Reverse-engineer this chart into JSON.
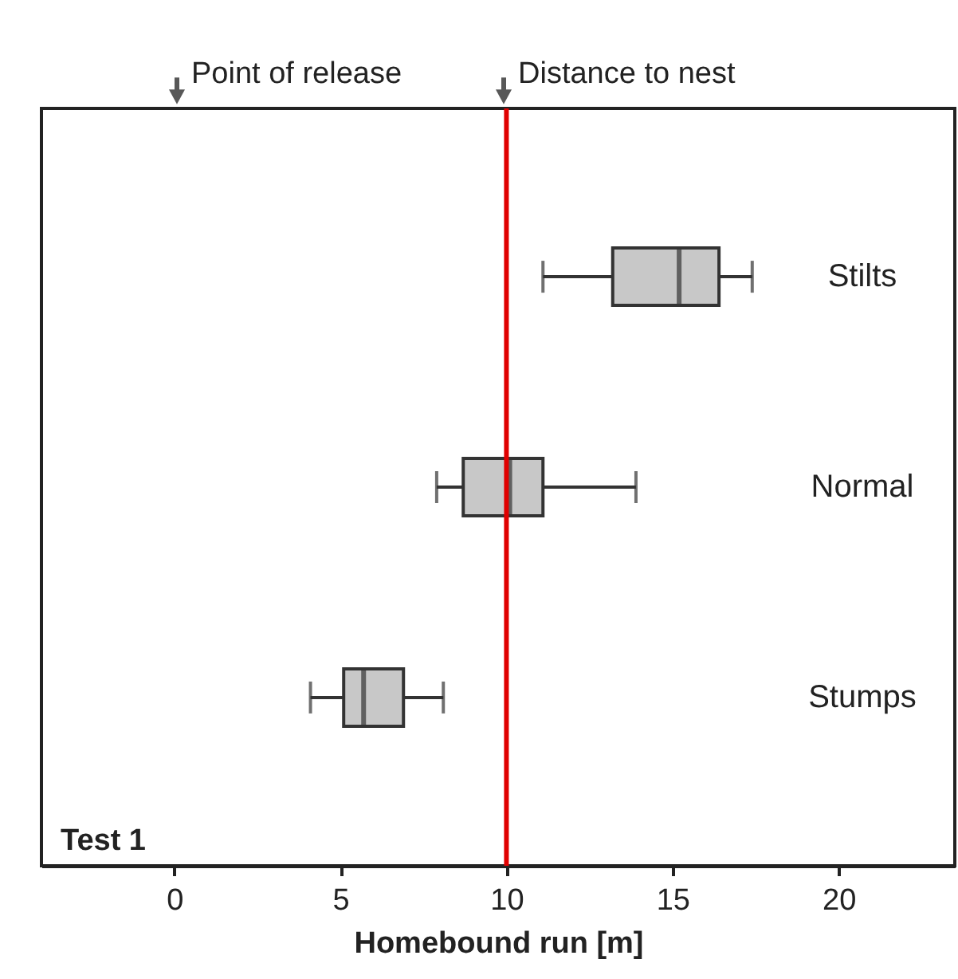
{
  "chart_data": {
    "type": "box",
    "orientation": "horizontal",
    "xlabel": "Homebound run [m]",
    "categories": [
      "Stilts",
      "Normal",
      "Stumps"
    ],
    "boxes": [
      {
        "low": 11.1,
        "q1": 13.2,
        "median": 15.2,
        "q3": 16.4,
        "high": 17.4
      },
      {
        "low": 7.9,
        "q1": 8.7,
        "median": 10.1,
        "q3": 11.1,
        "high": 13.9
      },
      {
        "low": 4.1,
        "q1": 5.1,
        "median": 5.7,
        "q3": 6.9,
        "high": 8.1
      }
    ],
    "color": "#c8c8c8",
    "xlim": [
      -4,
      23.5
    ],
    "xticks": [
      0,
      5,
      10,
      15,
      20
    ],
    "grid": false,
    "ref_lines": [
      {
        "axis": "x",
        "value": 10,
        "color": "#e00000"
      }
    ],
    "annotations": [
      "Test 1",
      "Point of release",
      "Distance to nest"
    ]
  }
}
